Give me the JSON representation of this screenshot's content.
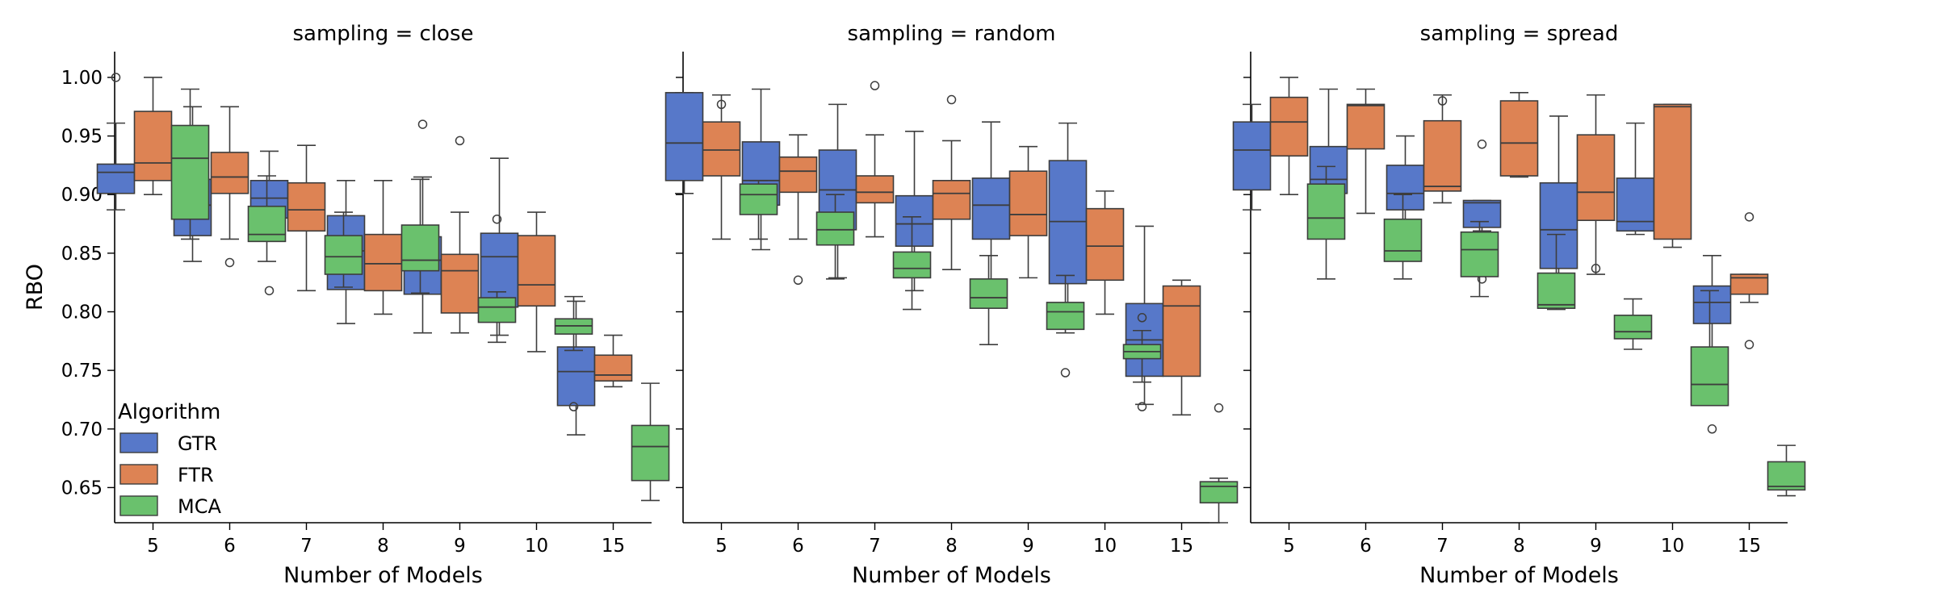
{
  "chart_data": {
    "type": "box",
    "ylabel": "RBO",
    "xlabel": "Number of Models",
    "ylim": [
      0.62,
      1.022
    ],
    "yticks": [
      "0.65",
      "0.70",
      "0.75",
      "0.80",
      "0.85",
      "0.90",
      "0.95",
      "1.00"
    ],
    "categories": [
      "5",
      "6",
      "7",
      "8",
      "9",
      "10",
      "15"
    ],
    "legend": {
      "title": "Algorithm",
      "position": "lower-left of first panel",
      "entries": [
        "GTR",
        "FTR",
        "MCA"
      ]
    },
    "colors": {
      "GTR": "#5778c9",
      "FTR": "#dd8354",
      "MCA": "#6ac16d"
    },
    "panels": [
      {
        "title": "sampling = close",
        "series": [
          {
            "name": "GTR",
            "boxes": [
              {
                "wl": 0.887,
                "q1": 0.901,
                "med": 0.919,
                "q3": 0.926,
                "wh": 0.961,
                "fliers": [
                  1.0
                ]
              },
              {
                "wl": 0.843,
                "q1": 0.865,
                "med": 0.891,
                "q3": 0.913,
                "wh": 0.975,
                "fliers": []
              },
              {
                "wl": 0.867,
                "q1": 0.88,
                "med": 0.897,
                "q3": 0.912,
                "wh": 0.937,
                "fliers": [
                  0.818
                ]
              },
              {
                "wl": 0.79,
                "q1": 0.819,
                "med": 0.852,
                "q3": 0.882,
                "wh": 0.912,
                "fliers": []
              },
              {
                "wl": 0.782,
                "q1": 0.815,
                "med": 0.844,
                "q3": 0.864,
                "wh": 0.915,
                "fliers": [
                  0.96
                ]
              },
              {
                "wl": 0.78,
                "q1": 0.804,
                "med": 0.847,
                "q3": 0.867,
                "wh": 0.931,
                "fliers": []
              },
              {
                "wl": 0.695,
                "q1": 0.72,
                "med": 0.749,
                "q3": 0.77,
                "wh": 0.809,
                "fliers": []
              }
            ]
          },
          {
            "name": "FTR",
            "boxes": [
              {
                "wl": 0.9,
                "q1": 0.912,
                "med": 0.927,
                "q3": 0.971,
                "wh": 1.0,
                "fliers": []
              },
              {
                "wl": 0.862,
                "q1": 0.901,
                "med": 0.915,
                "q3": 0.936,
                "wh": 0.975,
                "fliers": [
                  0.842
                ]
              },
              {
                "wl": 0.818,
                "q1": 0.869,
                "med": 0.887,
                "q3": 0.91,
                "wh": 0.942,
                "fliers": []
              },
              {
                "wl": 0.798,
                "q1": 0.818,
                "med": 0.841,
                "q3": 0.866,
                "wh": 0.912,
                "fliers": []
              },
              {
                "wl": 0.782,
                "q1": 0.799,
                "med": 0.835,
                "q3": 0.849,
                "wh": 0.885,
                "fliers": [
                  0.946
                ]
              },
              {
                "wl": 0.766,
                "q1": 0.805,
                "med": 0.823,
                "q3": 0.865,
                "wh": 0.885,
                "fliers": []
              },
              {
                "wl": 0.736,
                "q1": 0.741,
                "med": 0.746,
                "q3": 0.763,
                "wh": 0.78,
                "fliers": []
              }
            ]
          },
          {
            "name": "MCA",
            "boxes": [
              {
                "wl": 0.862,
                "q1": 0.879,
                "med": 0.931,
                "q3": 0.959,
                "wh": 0.99,
                "fliers": []
              },
              {
                "wl": 0.843,
                "q1": 0.86,
                "med": 0.866,
                "q3": 0.89,
                "wh": 0.916,
                "fliers": []
              },
              {
                "wl": 0.821,
                "q1": 0.832,
                "med": 0.847,
                "q3": 0.865,
                "wh": 0.885,
                "fliers": []
              },
              {
                "wl": 0.816,
                "q1": 0.835,
                "med": 0.844,
                "q3": 0.874,
                "wh": 0.913,
                "fliers": []
              },
              {
                "wl": 0.774,
                "q1": 0.791,
                "med": 0.804,
                "q3": 0.812,
                "wh": 0.817,
                "fliers": [
                  0.879
                ]
              },
              {
                "wl": 0.767,
                "q1": 0.781,
                "med": 0.788,
                "q3": 0.794,
                "wh": 0.813,
                "fliers": [
                  0.719
                ]
              },
              {
                "wl": 0.639,
                "q1": 0.656,
                "med": 0.685,
                "q3": 0.703,
                "wh": 0.739,
                "fliers": []
              }
            ]
          }
        ]
      },
      {
        "title": "sampling = random",
        "series": [
          {
            "name": "GTR",
            "boxes": [
              {
                "wl": 0.901,
                "q1": 0.912,
                "med": 0.944,
                "q3": 0.987,
                "wh": 0.987,
                "fliers": []
              },
              {
                "wl": 0.853,
                "q1": 0.891,
                "med": 0.912,
                "q3": 0.945,
                "wh": 0.99,
                "fliers": []
              },
              {
                "wl": 0.829,
                "q1": 0.87,
                "med": 0.904,
                "q3": 0.938,
                "wh": 0.977,
                "fliers": []
              },
              {
                "wl": 0.818,
                "q1": 0.856,
                "med": 0.875,
                "q3": 0.899,
                "wh": 0.954,
                "fliers": []
              },
              {
                "wl": 0.816,
                "q1": 0.862,
                "med": 0.891,
                "q3": 0.914,
                "wh": 0.962,
                "fliers": []
              },
              {
                "wl": 0.792,
                "q1": 0.824,
                "med": 0.877,
                "q3": 0.929,
                "wh": 0.961,
                "fliers": []
              },
              {
                "wl": 0.721,
                "q1": 0.745,
                "med": 0.776,
                "q3": 0.807,
                "wh": 0.873,
                "fliers": []
              }
            ]
          },
          {
            "name": "FTR",
            "boxes": [
              {
                "wl": 0.862,
                "q1": 0.916,
                "med": 0.938,
                "q3": 0.962,
                "wh": 0.985,
                "fliers": [
                  0.977
                ]
              },
              {
                "wl": 0.862,
                "q1": 0.902,
                "med": 0.92,
                "q3": 0.932,
                "wh": 0.951,
                "fliers": [
                  0.827
                ]
              },
              {
                "wl": 0.864,
                "q1": 0.893,
                "med": 0.902,
                "q3": 0.916,
                "wh": 0.951,
                "fliers": [
                  0.993
                ]
              },
              {
                "wl": 0.836,
                "q1": 0.879,
                "med": 0.901,
                "q3": 0.912,
                "wh": 0.946,
                "fliers": [
                  0.981
                ]
              },
              {
                "wl": 0.829,
                "q1": 0.865,
                "med": 0.883,
                "q3": 0.92,
                "wh": 0.941,
                "fliers": []
              },
              {
                "wl": 0.798,
                "q1": 0.827,
                "med": 0.856,
                "q3": 0.888,
                "wh": 0.903,
                "fliers": []
              },
              {
                "wl": 0.712,
                "q1": 0.745,
                "med": 0.805,
                "q3": 0.822,
                "wh": 0.827,
                "fliers": []
              }
            ]
          },
          {
            "name": "MCA",
            "boxes": [
              {
                "wl": 0.862,
                "q1": 0.883,
                "med": 0.9,
                "q3": 0.909,
                "wh": 0.912,
                "fliers": []
              },
              {
                "wl": 0.828,
                "q1": 0.857,
                "med": 0.87,
                "q3": 0.885,
                "wh": 0.9,
                "fliers": []
              },
              {
                "wl": 0.802,
                "q1": 0.829,
                "med": 0.837,
                "q3": 0.851,
                "wh": 0.881,
                "fliers": []
              },
              {
                "wl": 0.772,
                "q1": 0.803,
                "med": 0.812,
                "q3": 0.828,
                "wh": 0.848,
                "fliers": []
              },
              {
                "wl": 0.782,
                "q1": 0.785,
                "med": 0.8,
                "q3": 0.808,
                "wh": 0.831,
                "fliers": [
                  0.748
                ]
              },
              {
                "wl": 0.74,
                "q1": 0.76,
                "med": 0.766,
                "q3": 0.772,
                "wh": 0.784,
                "fliers": [
                  0.795,
                  0.719
                ]
              },
              {
                "wl": 0.62,
                "q1": 0.637,
                "med": 0.651,
                "q3": 0.655,
                "wh": 0.658,
                "fliers": [
                  0.718
                ]
              }
            ]
          }
        ]
      },
      {
        "title": "sampling = spread",
        "series": [
          {
            "name": "GTR",
            "boxes": [
              {
                "wl": 0.887,
                "q1": 0.904,
                "med": 0.938,
                "q3": 0.962,
                "wh": 0.977,
                "fliers": []
              },
              {
                "wl": 0.877,
                "q1": 0.901,
                "med": 0.913,
                "q3": 0.941,
                "wh": 0.99,
                "fliers": []
              },
              {
                "wl": 0.866,
                "q1": 0.887,
                "med": 0.901,
                "q3": 0.925,
                "wh": 0.95,
                "fliers": []
              },
              {
                "wl": 0.869,
                "q1": 0.872,
                "med": 0.893,
                "q3": 0.895,
                "wh": 0.895,
                "fliers": [
                  0.943,
                  0.828
                ]
              },
              {
                "wl": 0.813,
                "q1": 0.837,
                "med": 0.87,
                "q3": 0.91,
                "wh": 0.967,
                "fliers": []
              },
              {
                "wl": 0.866,
                "q1": 0.869,
                "med": 0.877,
                "q3": 0.914,
                "wh": 0.961,
                "fliers": []
              },
              {
                "wl": 0.76,
                "q1": 0.79,
                "med": 0.808,
                "q3": 0.822,
                "wh": 0.848,
                "fliers": [
                  0.7
                ]
              }
            ]
          },
          {
            "name": "FTR",
            "boxes": [
              {
                "wl": 0.9,
                "q1": 0.933,
                "med": 0.962,
                "q3": 0.983,
                "wh": 1.0,
                "fliers": []
              },
              {
                "wl": 0.884,
                "q1": 0.939,
                "med": 0.976,
                "q3": 0.977,
                "wh": 0.99,
                "fliers": []
              },
              {
                "wl": 0.893,
                "q1": 0.903,
                "med": 0.907,
                "q3": 0.963,
                "wh": 0.985,
                "fliers": [
                  0.98
                ]
              },
              {
                "wl": 0.915,
                "q1": 0.916,
                "med": 0.944,
                "q3": 0.98,
                "wh": 0.987,
                "fliers": []
              },
              {
                "wl": 0.832,
                "q1": 0.878,
                "med": 0.902,
                "q3": 0.951,
                "wh": 0.985,
                "fliers": [
                  0.837
                ]
              },
              {
                "wl": 0.855,
                "q1": 0.862,
                "med": 0.975,
                "q3": 0.977,
                "wh": 0.977,
                "fliers": []
              },
              {
                "wl": 0.808,
                "q1": 0.815,
                "med": 0.829,
                "q3": 0.832,
                "wh": 0.832,
                "fliers": [
                  0.881,
                  0.772
                ]
              }
            ]
          },
          {
            "name": "MCA",
            "boxes": [
              {
                "wl": 0.828,
                "q1": 0.862,
                "med": 0.88,
                "q3": 0.909,
                "wh": 0.924,
                "fliers": []
              },
              {
                "wl": 0.828,
                "q1": 0.843,
                "med": 0.852,
                "q3": 0.879,
                "wh": 0.9,
                "fliers": []
              },
              {
                "wl": 0.813,
                "q1": 0.83,
                "med": 0.853,
                "q3": 0.868,
                "wh": 0.877,
                "fliers": []
              },
              {
                "wl": 0.802,
                "q1": 0.803,
                "med": 0.806,
                "q3": 0.833,
                "wh": 0.866,
                "fliers": []
              },
              {
                "wl": 0.768,
                "q1": 0.777,
                "med": 0.783,
                "q3": 0.797,
                "wh": 0.811,
                "fliers": []
              },
              {
                "wl": 0.72,
                "q1": 0.72,
                "med": 0.738,
                "q3": 0.77,
                "wh": 0.818,
                "fliers": []
              },
              {
                "wl": 0.643,
                "q1": 0.648,
                "med": 0.651,
                "q3": 0.672,
                "wh": 0.686,
                "fliers": []
              }
            ]
          }
        ]
      }
    ]
  }
}
